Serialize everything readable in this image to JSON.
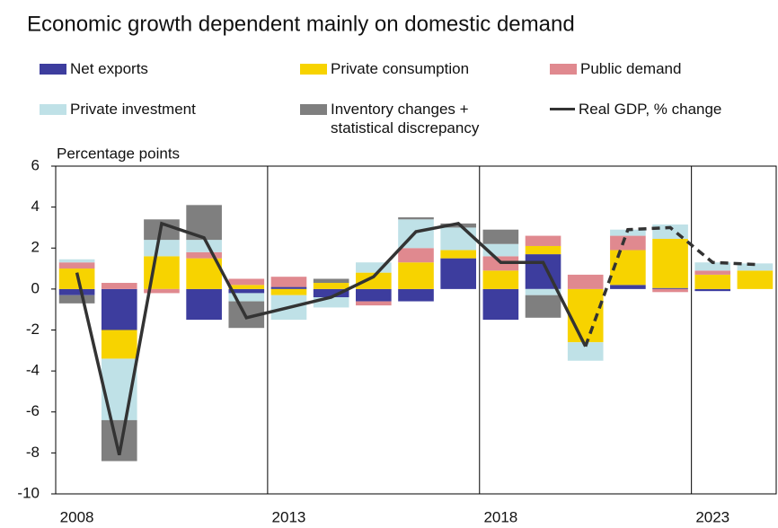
{
  "chart_data": {
    "type": "stacked_bar_line",
    "title": "Economic growth dependent mainly on domestic demand",
    "y_label": "Percentage points",
    "categories": [
      "2008",
      null,
      null,
      null,
      null,
      "2013",
      null,
      null,
      null,
      null,
      "2018",
      null,
      null,
      null,
      null,
      "2023",
      null
    ],
    "ylim": [
      -10,
      6
    ],
    "yticks": [
      -10,
      -8,
      -6,
      -4,
      -2,
      0,
      2,
      4,
      6
    ],
    "series": [
      {
        "name": "Net exports",
        "color": "#3d3d9e",
        "values": [
          -0.3,
          -2.0,
          0,
          -1.5,
          -0.2,
          0.1,
          -0.4,
          -0.6,
          -0.6,
          1.5,
          -1.5,
          1.7,
          0,
          0.2,
          0.05,
          -0.1,
          0
        ]
      },
      {
        "name": "Private consumption",
        "color": "#f7d300",
        "values": [
          1.0,
          -1.4,
          1.6,
          1.5,
          0.2,
          -0.3,
          0.3,
          0.8,
          1.3,
          0.4,
          0.9,
          0.4,
          -2.6,
          1.7,
          2.4,
          0.7,
          0.9
        ]
      },
      {
        "name": "Public demand",
        "color": "#e0898f",
        "values": [
          0.3,
          0.3,
          -0.2,
          0.3,
          0.3,
          0.5,
          0,
          -0.2,
          0.7,
          0,
          0.7,
          0.5,
          0.7,
          0.7,
          -0.15,
          0.2,
          0
        ]
      },
      {
        "name": "Private investment",
        "color": "#bfe1e7",
        "values": [
          0.15,
          -3.0,
          0.8,
          0.6,
          -0.4,
          -1.2,
          -0.5,
          0.5,
          1.4,
          1.1,
          0.6,
          -0.3,
          -0.9,
          0.3,
          0.7,
          0.4,
          0.35
        ]
      },
      {
        "name": "Inventory changes + statistical discrepancy",
        "color": "#7f7f7f",
        "values": [
          -0.4,
          -2.0,
          1.0,
          1.7,
          -1.3,
          0,
          0.2,
          0,
          0.1,
          0.2,
          0.7,
          -1.1,
          0,
          0,
          0,
          0,
          0
        ]
      },
      {
        "name": "Real GDP, % change",
        "color": "#333333",
        "kind": "line",
        "forecast_from_index": 12,
        "values": [
          0.8,
          -8.1,
          3.2,
          2.5,
          -1.4,
          -0.9,
          -0.4,
          0.6,
          2.8,
          3.2,
          1.3,
          1.3,
          -2.8,
          2.9,
          3.0,
          1.3,
          1.2
        ]
      }
    ]
  }
}
